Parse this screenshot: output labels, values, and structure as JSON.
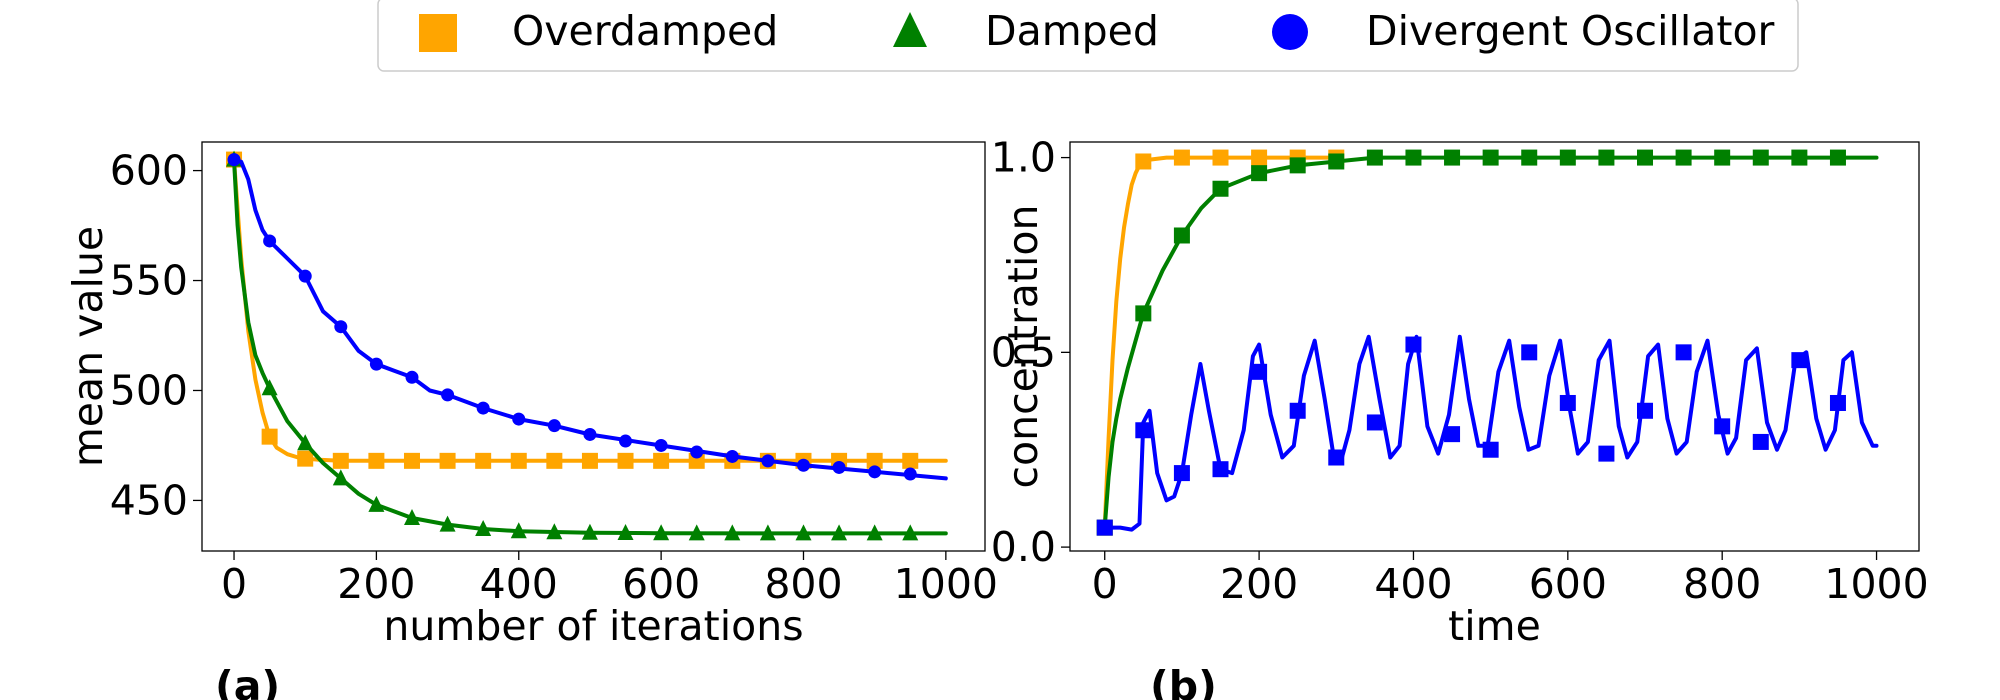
{
  "legend": {
    "items": [
      {
        "label": "Overdamped",
        "color": "#FFA500",
        "marker": "square"
      },
      {
        "label": "Damped",
        "color": "#008000",
        "marker": "triangle"
      },
      {
        "label": "Divergent Oscillator",
        "color": "#0000FF",
        "marker": "circle"
      }
    ]
  },
  "chart_data": [
    {
      "type": "line",
      "panel_label": "(a)",
      "xlabel": "number of iterations",
      "ylabel": "mean value",
      "xlim": [
        -45,
        1055
      ],
      "ylim": [
        427,
        613
      ],
      "xticks": [
        0,
        200,
        400,
        600,
        800,
        1000
      ],
      "yticks": [
        450,
        500,
        550,
        600
      ],
      "grid": false,
      "series": [
        {
          "name": "Overdamped",
          "color": "#FFA500",
          "marker": "square",
          "x": [
            0,
            50,
            100,
            150,
            200,
            250,
            300,
            350,
            400,
            450,
            500,
            550,
            600,
            650,
            700,
            750,
            800,
            850,
            900,
            950
          ],
          "y": [
            605,
            479,
            469,
            468,
            468,
            468,
            468,
            468,
            468,
            468,
            468,
            468,
            468,
            468,
            468,
            468,
            468,
            468,
            468,
            468
          ],
          "line_x": [
            0,
            10,
            20,
            30,
            40,
            50,
            60,
            75,
            90,
            100,
            120,
            150,
            200,
            300,
            500,
            700,
            900,
            1000
          ],
          "line_y": [
            605,
            560,
            527,
            505,
            490,
            479,
            474,
            471,
            469.5,
            469,
            468.5,
            468,
            468,
            468,
            468,
            468,
            468,
            468
          ]
        },
        {
          "name": "Damped",
          "color": "#008000",
          "marker": "triangle",
          "x": [
            0,
            50,
            100,
            150,
            200,
            250,
            300,
            350,
            400,
            450,
            500,
            550,
            600,
            650,
            700,
            750,
            800,
            850,
            900,
            950
          ],
          "y": [
            605,
            501,
            476,
            460,
            448,
            442,
            439,
            437,
            436,
            435.5,
            435.3,
            435.2,
            435.1,
            435,
            435,
            435,
            435,
            435,
            435,
            435
          ],
          "line_x": [
            0,
            5,
            10,
            20,
            30,
            40,
            50,
            75,
            100,
            125,
            150,
            175,
            200,
            250,
            300,
            350,
            400,
            500,
            600,
            800,
            1000
          ],
          "line_y": [
            605,
            575,
            556,
            531,
            516,
            508,
            501,
            486,
            476,
            467,
            460,
            453,
            448,
            442,
            439,
            437,
            436,
            435.3,
            435.1,
            435,
            435
          ]
        },
        {
          "name": "Divergent Oscillator",
          "color": "#0000FF",
          "marker": "circle",
          "x": [
            0,
            50,
            100,
            150,
            200,
            250,
            300,
            350,
            400,
            450,
            500,
            550,
            600,
            650,
            700,
            750,
            800,
            850,
            900,
            950
          ],
          "y": [
            605,
            568,
            552,
            529,
            512,
            506,
            498,
            492,
            487,
            484,
            480,
            477,
            475,
            472,
            470,
            468,
            466,
            465,
            463,
            462
          ],
          "line_x": [
            0,
            10,
            20,
            30,
            40,
            50,
            75,
            100,
            125,
            150,
            175,
            200,
            225,
            250,
            275,
            300,
            350,
            400,
            450,
            500,
            600,
            700,
            800,
            900,
            1000
          ],
          "line_y": [
            605,
            604,
            596,
            582,
            573,
            568,
            560,
            552,
            536,
            529,
            518,
            512,
            509,
            506,
            500,
            498,
            492,
            487,
            484,
            480,
            475,
            470,
            466,
            463,
            460
          ]
        }
      ]
    },
    {
      "type": "line",
      "panel_label": "(b)",
      "xlabel": "time",
      "ylabel": "concentration",
      "xlim": [
        -45,
        1055
      ],
      "ylim": [
        -0.01,
        1.04
      ],
      "xticks": [
        0,
        200,
        400,
        600,
        800,
        1000
      ],
      "yticks": [
        0.0,
        0.5,
        1.0
      ],
      "grid": false,
      "series": [
        {
          "name": "Overdamped",
          "color": "#FFA500",
          "marker": "square",
          "x": [
            0,
            50,
            100,
            150,
            200,
            250,
            300
          ],
          "y": [
            0.05,
            0.99,
            1.0,
            1.0,
            1.0,
            1.0,
            1.0
          ],
          "line_x": [
            0,
            5,
            10,
            15,
            20,
            25,
            30,
            35,
            40,
            45,
            50,
            60,
            80,
            100,
            300
          ],
          "line_y": [
            0.05,
            0.28,
            0.48,
            0.63,
            0.74,
            0.82,
            0.88,
            0.93,
            0.96,
            0.98,
            0.99,
            0.995,
            1.0,
            1.0,
            1.0
          ]
        },
        {
          "name": "Damped",
          "color": "#008000",
          "marker": "square",
          "x": [
            0,
            50,
            100,
            150,
            200,
            250,
            300,
            350,
            400,
            450,
            500,
            550,
            600,
            650,
            700,
            750,
            800,
            850,
            900,
            950
          ],
          "y": [
            0.05,
            0.6,
            0.8,
            0.92,
            0.96,
            0.98,
            0.99,
            1.0,
            1.0,
            1.0,
            1.0,
            1.0,
            1.0,
            1.0,
            1.0,
            1.0,
            1.0,
            1.0,
            1.0,
            1.0
          ],
          "line_x": [
            0,
            5,
            10,
            15,
            20,
            30,
            40,
            50,
            75,
            100,
            125,
            150,
            200,
            250,
            300,
            350,
            400,
            1000
          ],
          "line_y": [
            0.05,
            0.18,
            0.27,
            0.33,
            0.38,
            0.46,
            0.53,
            0.6,
            0.71,
            0.8,
            0.87,
            0.92,
            0.96,
            0.98,
            0.99,
            1.0,
            1.0,
            1.0
          ]
        },
        {
          "name": "Divergent Oscillator",
          "color": "#0000FF",
          "marker": "square",
          "x": [
            0,
            50,
            100,
            150,
            200,
            250,
            300,
            350,
            400,
            450,
            500,
            550,
            600,
            650,
            700,
            750,
            800,
            850,
            900,
            950
          ],
          "y": [
            0.05,
            0.3,
            0.19,
            0.2,
            0.45,
            0.35,
            0.23,
            0.32,
            0.52,
            0.29,
            0.25,
            0.5,
            0.37,
            0.24,
            0.35,
            0.5,
            0.31,
            0.27,
            0.48,
            0.37
          ],
          "line_x": [
            0,
            20,
            35,
            45,
            50,
            58,
            68,
            80,
            90,
            100,
            112,
            124,
            135,
            150,
            165,
            180,
            192,
            200,
            215,
            230,
            245,
            258,
            272,
            285,
            296,
            306,
            317,
            330,
            342,
            356,
            370,
            382,
            393,
            404,
            418,
            432,
            446,
            460,
            472,
            484,
            496,
            510,
            524,
            537,
            549,
            562,
            576,
            590,
            602,
            613,
            626,
            640,
            654,
            666,
            677,
            690,
            704,
            717,
            729,
            741,
            754,
            767,
            781,
            795,
            807,
            818,
            831,
            845,
            858,
            871,
            882,
            895,
            909,
            922,
            934,
            946,
            957,
            968,
            981,
            995,
            1000
          ],
          "line_y": [
            0.05,
            0.05,
            0.045,
            0.06,
            0.32,
            0.35,
            0.19,
            0.12,
            0.13,
            0.19,
            0.34,
            0.47,
            0.35,
            0.2,
            0.19,
            0.3,
            0.49,
            0.52,
            0.34,
            0.23,
            0.26,
            0.44,
            0.53,
            0.38,
            0.24,
            0.22,
            0.3,
            0.47,
            0.54,
            0.38,
            0.23,
            0.26,
            0.47,
            0.54,
            0.31,
            0.24,
            0.34,
            0.54,
            0.38,
            0.26,
            0.26,
            0.45,
            0.53,
            0.36,
            0.25,
            0.26,
            0.44,
            0.53,
            0.36,
            0.24,
            0.27,
            0.48,
            0.53,
            0.31,
            0.23,
            0.27,
            0.49,
            0.52,
            0.33,
            0.24,
            0.27,
            0.45,
            0.53,
            0.34,
            0.24,
            0.28,
            0.48,
            0.51,
            0.32,
            0.25,
            0.3,
            0.48,
            0.5,
            0.33,
            0.25,
            0.3,
            0.48,
            0.5,
            0.32,
            0.26,
            0.26
          ]
        }
      ]
    }
  ]
}
